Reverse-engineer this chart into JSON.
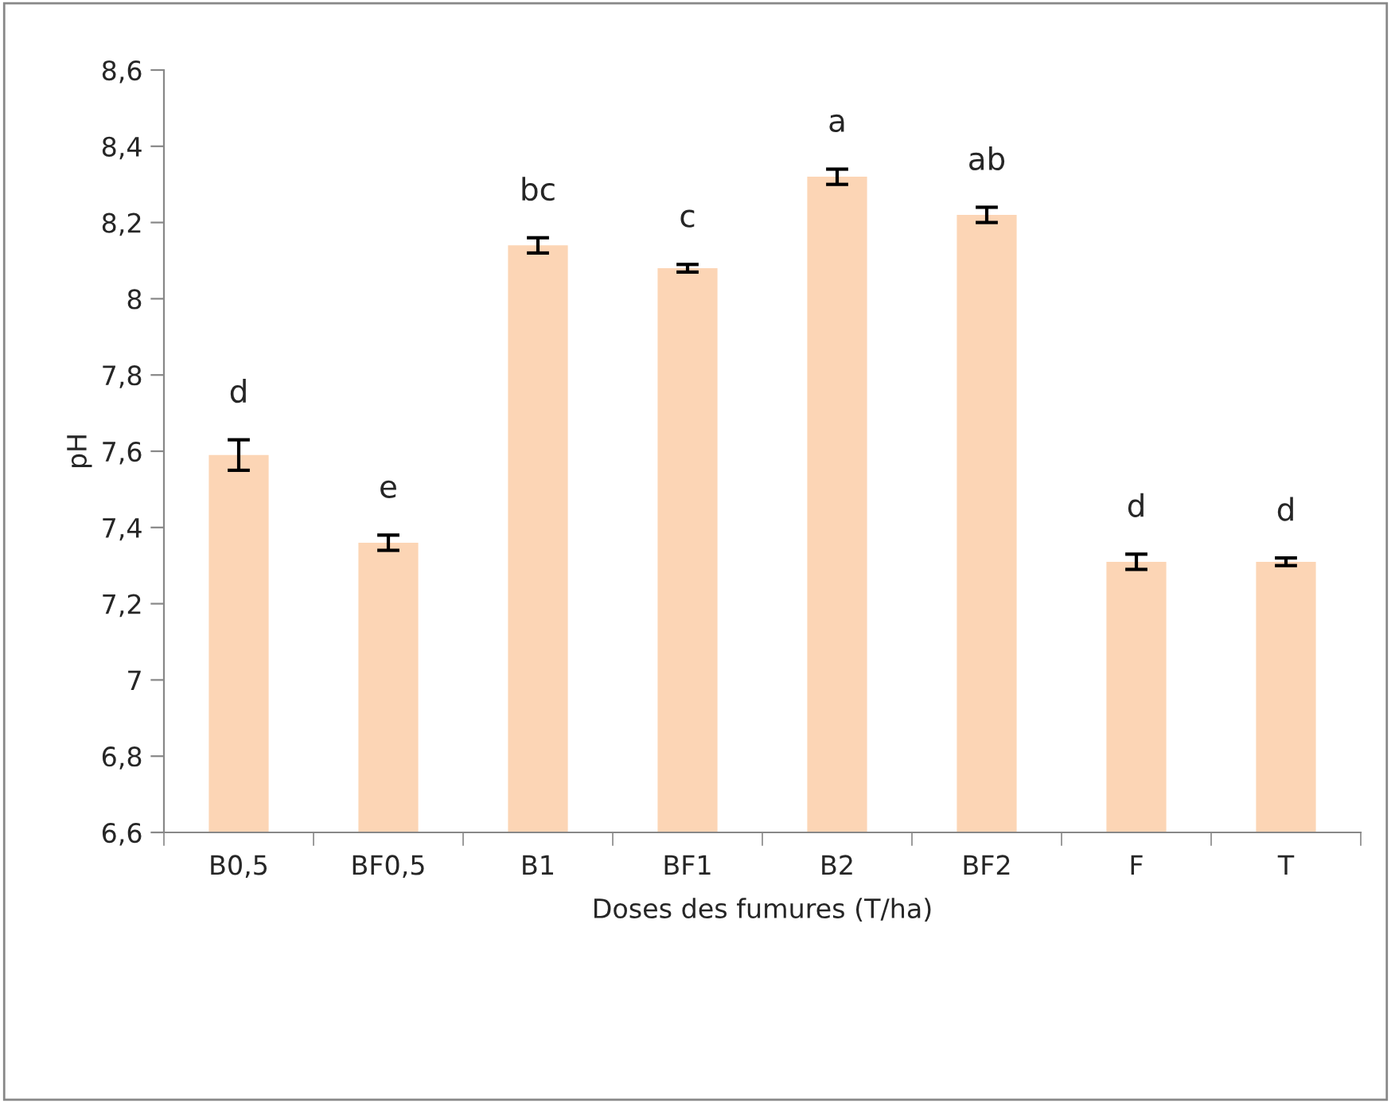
{
  "chart_data": {
    "type": "bar",
    "categories": [
      "B0,5",
      "BF0,5",
      "B1",
      "BF1",
      "B2",
      "BF2",
      "F",
      "T"
    ],
    "values": [
      7.59,
      7.36,
      8.14,
      8.08,
      8.32,
      8.22,
      7.31,
      7.31
    ],
    "errors": [
      0.04,
      0.02,
      0.02,
      0.01,
      0.02,
      0.02,
      0.02,
      0.01
    ],
    "color": "#fcd5b5",
    "xlabel": "Doses des fumures (T/ha)",
    "ylabel": "pH",
    "ylim": [
      6.6,
      8.6
    ],
    "yticks": [
      {
        "value": 6.6,
        "label": "6,6"
      },
      {
        "value": 6.8,
        "label": "6,8"
      },
      {
        "value": 7,
        "label": "7"
      },
      {
        "value": 7.2,
        "label": "7,2"
      },
      {
        "value": 7.4,
        "label": "7,4"
      },
      {
        "value": 7.6,
        "label": "7,6"
      },
      {
        "value": 7.8,
        "label": "7,8"
      },
      {
        "value": 8,
        "label": "8"
      },
      {
        "value": 8.2,
        "label": "8,2"
      },
      {
        "value": 8.4,
        "label": "8,4"
      },
      {
        "value": 8.6,
        "label": "8,6"
      }
    ],
    "annotations": [
      {
        "text": "d",
        "x": "B0,5",
        "y": 7.63
      },
      {
        "text": "e",
        "x": "BF0,5",
        "y": 7.38
      },
      {
        "text": "bc",
        "x": "B1",
        "y": 8.16
      },
      {
        "text": "c",
        "x": "BF1",
        "y": 8.09
      },
      {
        "text": "a",
        "x": "B2",
        "y": 8.34
      },
      {
        "text": "ab",
        "x": "BF2",
        "y": 8.24
      },
      {
        "text": "d",
        "x": "F",
        "y": 7.33
      },
      {
        "text": "d",
        "x": "T",
        "y": 7.32
      }
    ],
    "grid": false,
    "legend": false
  }
}
